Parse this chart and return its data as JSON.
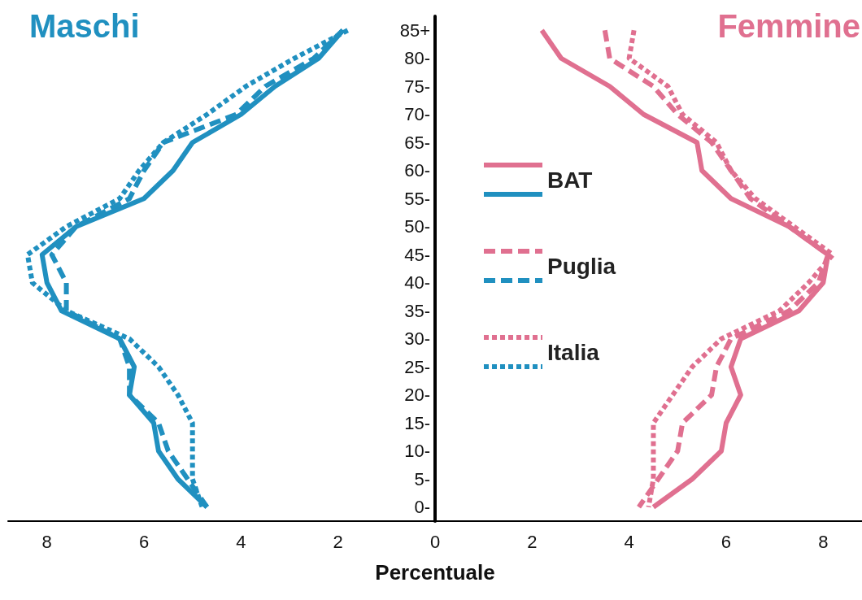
{
  "chart_data": {
    "type": "line",
    "orientation": "horizontal",
    "xlabel": "Percentuale",
    "annotations": [
      "Maschi",
      "Femmine"
    ],
    "categories": [
      "85+",
      "80-",
      "75-",
      "70-",
      "65-",
      "60-",
      "55-",
      "50-",
      "45-",
      "40-",
      "35-",
      "30-",
      "25-",
      "20-",
      "15-",
      "10-",
      "5-",
      "0-"
    ],
    "xlim": [
      -8.8,
      8.8
    ],
    "xticks": [
      {
        "value": -8,
        "label": "8"
      },
      {
        "value": -6,
        "label": "6"
      },
      {
        "value": -4,
        "label": "4"
      },
      {
        "value": -2,
        "label": "2"
      },
      0,
      2,
      4,
      6,
      8
    ],
    "grid": false,
    "legend": "center",
    "marker": "none",
    "series": [
      {
        "name": "BAT",
        "color": "#e07090",
        "line_style": "solid",
        "values": [
          2.2,
          2.6,
          3.6,
          4.3,
          5.4,
          5.5,
          6.1,
          7.3,
          8.1,
          8.0,
          7.5,
          6.3,
          6.1,
          6.3,
          6.0,
          5.9,
          5.3,
          4.5
        ]
      },
      {
        "color": "#2090c0",
        "line_style": "solid",
        "values": [
          -1.9,
          -2.4,
          -3.3,
          -4.0,
          -5.0,
          -5.4,
          -6.0,
          -7.4,
          -8.1,
          -8.0,
          -7.7,
          -6.5,
          -6.2,
          -6.3,
          -5.8,
          -5.7,
          -5.3,
          -4.7
        ]
      },
      {
        "name": "Puglia",
        "color": "#e07090",
        "line_style": "dashed",
        "values": [
          3.5,
          3.6,
          4.5,
          5.0,
          5.7,
          6.1,
          6.5,
          7.3,
          8.1,
          7.9,
          7.3,
          6.1,
          5.8,
          5.7,
          5.1,
          5.0,
          4.6,
          4.2
        ]
      },
      {
        "color": "#2090c0",
        "line_style": "dashed",
        "values": [
          -1.9,
          -2.5,
          -3.5,
          -4.1,
          -5.6,
          -6.0,
          -6.3,
          -7.4,
          -7.9,
          -7.6,
          -7.6,
          -6.5,
          -6.3,
          -6.3,
          -5.7,
          -5.5,
          -5.1,
          -4.7
        ]
      },
      {
        "name": "Italia",
        "color": "#e07090",
        "line_style": "dotted",
        "values": [
          4.1,
          4.0,
          4.8,
          5.1,
          5.8,
          6.1,
          6.6,
          7.4,
          8.2,
          7.7,
          7.1,
          5.9,
          5.3,
          4.9,
          4.5,
          4.5,
          4.5,
          4.4
        ]
      },
      {
        "color": "#2090c0",
        "line_style": "dotted",
        "values": [
          -1.8,
          -2.9,
          -3.9,
          -4.7,
          -5.6,
          -6.1,
          -6.5,
          -7.6,
          -8.4,
          -8.3,
          -7.6,
          -6.3,
          -5.7,
          -5.3,
          -5.0,
          -5.0,
          -5.0,
          -4.8
        ]
      }
    ]
  }
}
